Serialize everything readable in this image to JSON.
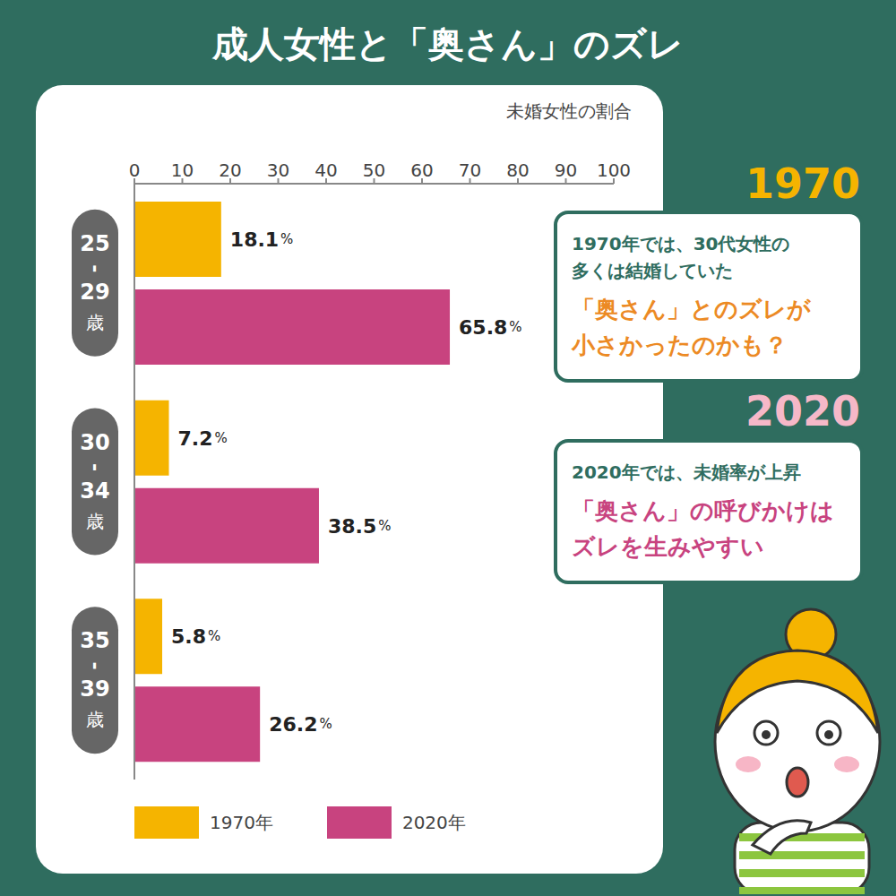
{
  "title": "成人女性と「奥さん」のズレ",
  "chart_data": {
    "type": "bar",
    "orientation": "horizontal",
    "x_label": "未婚女性の割合",
    "categories": [
      "25-29歳",
      "30-34歳",
      "35-39歳"
    ],
    "series": [
      {
        "name": "1970年",
        "color": "#f5b400",
        "values": [
          18.1,
          7.2,
          5.8
        ],
        "value_labels": [
          "18.1%",
          "7.2%",
          "5.8%"
        ]
      },
      {
        "name": "2020年",
        "color": "#c8437f",
        "values": [
          65.8,
          38.5,
          26.2
        ],
        "value_labels": [
          "65.8%",
          "38.5%",
          "26.2%"
        ]
      }
    ],
    "xlim": [
      0,
      100
    ],
    "xticks": [
      0,
      10,
      20,
      30,
      40,
      50,
      60,
      70,
      80,
      90,
      100
    ],
    "grid": false,
    "data_labels": true,
    "legend": "bottom"
  },
  "annotations": [
    {
      "heading": "1970",
      "lines": [
        "1970年では、30代女性の",
        "多くは結婚していた"
      ],
      "highlight": [
        "「奥さん」とのズレが",
        "小さかったのかも？"
      ]
    },
    {
      "heading": "2020",
      "lines": [
        "2020年では、未婚率が上昇"
      ],
      "highlight": [
        "「奥さん」の呼びかけは",
        "ズレを生みやすい"
      ]
    }
  ]
}
